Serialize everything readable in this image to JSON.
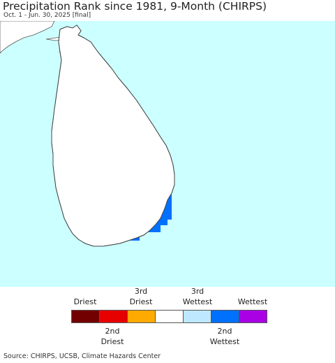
{
  "header": {
    "title": "Precipitation Rank since 1981, 9-Month (CHIRPS)",
    "subtitle": "Oct. 1 - Jun. 30, 2025 [final]"
  },
  "map": {
    "sea_color": "#ccffff",
    "land_color": "#ffffff",
    "border_color": "#555555"
  },
  "legend": {
    "top_labels": [
      {
        "lines": [
          "Driest"
        ]
      },
      {
        "lines": [
          "3rd",
          "Driest"
        ]
      },
      {
        "lines": [
          "3rd",
          "Wettest"
        ]
      },
      {
        "lines": [
          "Wettest"
        ]
      }
    ],
    "bottom_labels": [
      {
        "lines": [
          "2nd",
          "Driest"
        ]
      },
      {
        "lines": [
          "2nd",
          "Wettest"
        ]
      }
    ],
    "swatches": [
      {
        "name": "driest",
        "color": "#730000"
      },
      {
        "name": "2nd-driest",
        "color": "#e60000"
      },
      {
        "name": "3rd-driest",
        "color": "#ffaa00"
      },
      {
        "name": "normal",
        "color": "#ffffff"
      },
      {
        "name": "3rd-wettest",
        "color": "#bee8ff"
      },
      {
        "name": "2nd-wettest",
        "color": "#0070ff"
      },
      {
        "name": "wettest",
        "color": "#a900e6"
      }
    ]
  },
  "footer": {
    "source": "Source: CHIRPS, UCSB, Climate Hazards Center"
  }
}
